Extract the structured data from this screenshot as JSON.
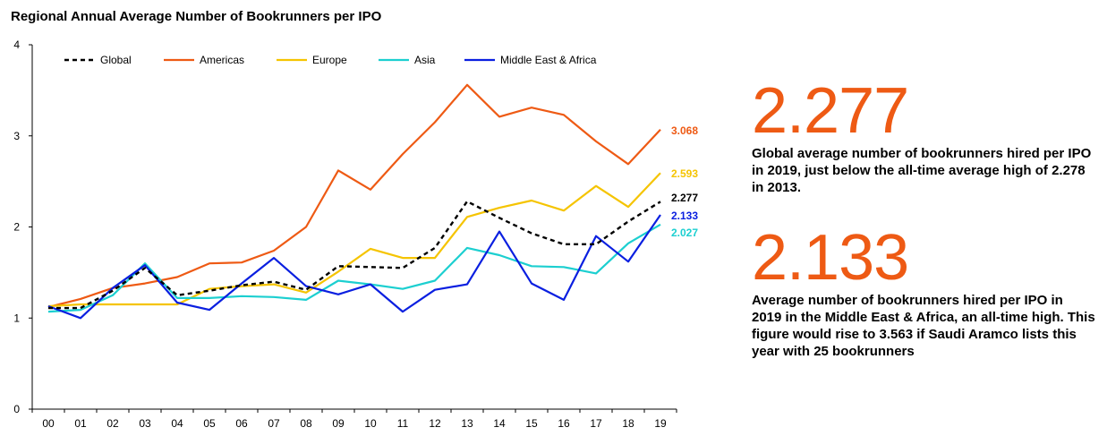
{
  "chart_data": {
    "type": "line",
    "title": "Regional Annual Average Number of Bookrunners per IPO",
    "xlabel": "",
    "ylabel": "",
    "ylim": [
      0,
      4
    ],
    "yticks": [
      "0",
      "1",
      "2",
      "3",
      "4"
    ],
    "x": [
      "00",
      "01",
      "02",
      "03",
      "04",
      "05",
      "06",
      "07",
      "08",
      "09",
      "10",
      "11",
      "12",
      "13",
      "14",
      "15",
      "16",
      "17",
      "18",
      "19"
    ],
    "grid": false,
    "legend": "top-left",
    "series": [
      {
        "name": "Global",
        "color": "#000000",
        "dashed": true,
        "end_label": "2.277",
        "values": [
          1.11,
          1.11,
          1.3,
          1.55,
          1.25,
          1.3,
          1.36,
          1.4,
          1.31,
          1.57,
          1.56,
          1.55,
          1.77,
          2.28,
          2.1,
          1.93,
          1.81,
          1.81,
          2.06,
          2.277
        ]
      },
      {
        "name": "Americas",
        "color": "#ee5a14",
        "dashed": false,
        "end_label": "3.068",
        "values": [
          1.12,
          1.21,
          1.33,
          1.38,
          1.45,
          1.6,
          1.61,
          1.74,
          2.0,
          2.62,
          2.41,
          2.8,
          3.15,
          3.56,
          3.21,
          3.31,
          3.23,
          2.94,
          2.69,
          3.068
        ]
      },
      {
        "name": "Europe",
        "color": "#f5c400",
        "dashed": false,
        "end_label": "2.593",
        "values": [
          1.13,
          1.15,
          1.15,
          1.15,
          1.15,
          1.32,
          1.35,
          1.37,
          1.28,
          1.51,
          1.76,
          1.66,
          1.66,
          2.11,
          2.21,
          2.29,
          2.18,
          2.45,
          2.22,
          2.593
        ]
      },
      {
        "name": "Asia",
        "color": "#1ccfd0",
        "dashed": false,
        "end_label": "2.027",
        "values": [
          1.07,
          1.09,
          1.25,
          1.6,
          1.22,
          1.22,
          1.24,
          1.23,
          1.2,
          1.41,
          1.37,
          1.32,
          1.41,
          1.77,
          1.69,
          1.57,
          1.56,
          1.49,
          1.82,
          2.027
        ]
      },
      {
        "name": "Middle East & Africa",
        "color": "#0a1fe0",
        "dashed": false,
        "end_label": "2.133",
        "values": [
          1.13,
          1.0,
          1.33,
          1.58,
          1.17,
          1.09,
          1.38,
          1.66,
          1.35,
          1.26,
          1.37,
          1.07,
          1.31,
          1.37,
          1.95,
          1.38,
          1.2,
          1.9,
          1.62,
          2.133
        ]
      }
    ]
  },
  "stats": [
    {
      "value": "2.277",
      "description": "Global average number of bookrunners hired per IPO in 2019, just below the all-time average high of 2.278 in 2013."
    },
    {
      "value": "2.133",
      "description": "Average number of bookrunners hired per IPO in 2019 in the Middle East & Africa, an all-time high. This figure would rise to 3.563 if Saudi Aramco lists this year with 25 bookrunners"
    }
  ]
}
